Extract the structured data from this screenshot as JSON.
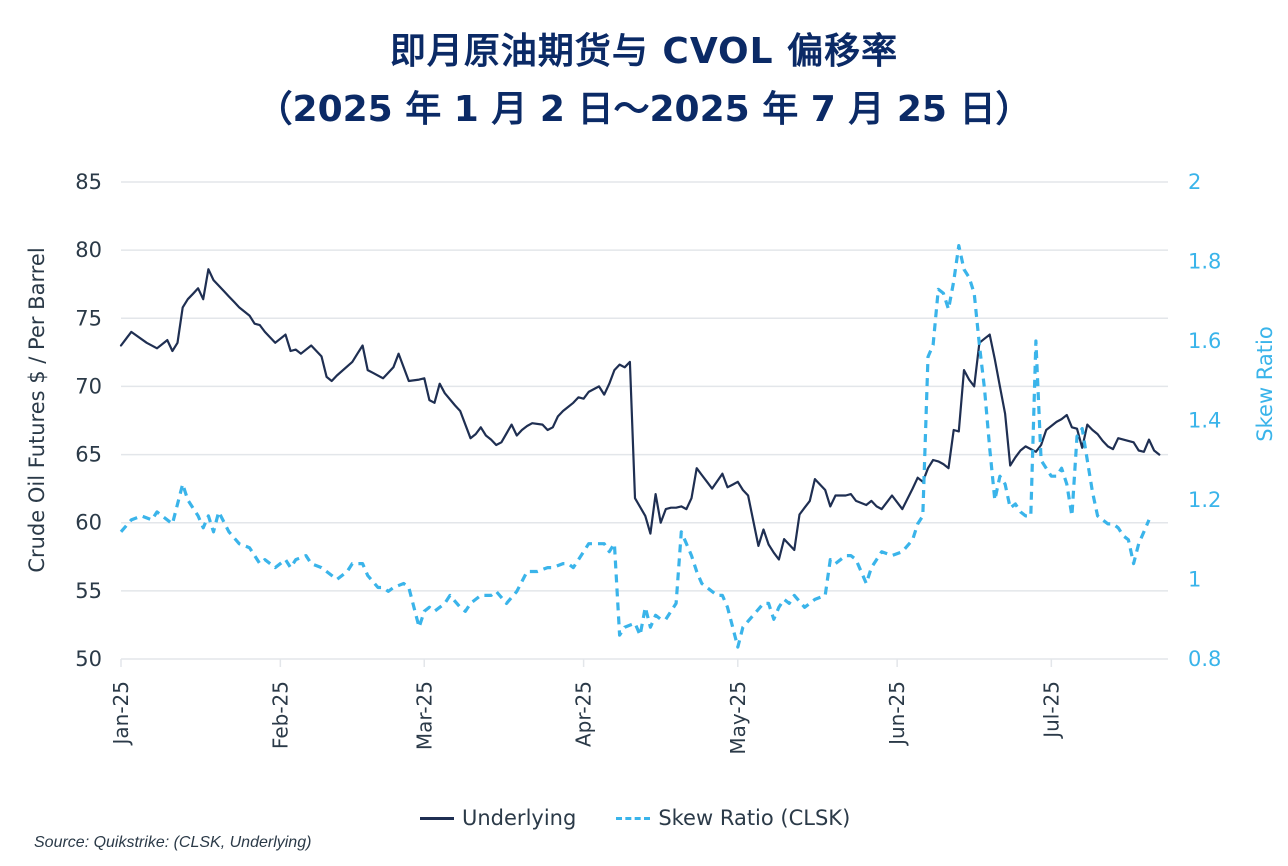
{
  "title_line1": "即月原油期货与 CVOL 偏移率",
  "title_line2": "（2025 年 1 月 2 日～2025 年 7 月 25 日）",
  "source": "Source: Quikstrike: (CLSK, Underlying)",
  "chart_data": {
    "type": "line",
    "title": "即月原油期货与 CVOL 偏移率（2025 年 1 月 2 日～2025 年 7 月 25 日）",
    "xlabel": "",
    "ylabel": "Crude Oil Futures  $ / Per Barrel",
    "y2label": "Skew Ratio",
    "ylim": [
      50,
      85
    ],
    "y2lim": [
      0.8,
      2.0
    ],
    "yticks": [
      "85",
      "80",
      "75",
      "70",
      "65",
      "60",
      "55",
      "50"
    ],
    "yticks_values": [
      85,
      80,
      75,
      70,
      65,
      60,
      55,
      50
    ],
    "y2ticks": [
      "2",
      "1.8",
      "1.6",
      "1.4",
      "1.2",
      "1",
      "0.8"
    ],
    "y2ticks_values": [
      2.0,
      1.8,
      1.6,
      1.4,
      1.2,
      1.0,
      0.8
    ],
    "xticks": [
      "Jan-25",
      "Feb-25",
      "Mar-25",
      "Apr-25",
      "May-25",
      "Jun-25",
      "Jul-25"
    ],
    "xticks_day": [
      0,
      31,
      59,
      90,
      120,
      151,
      181
    ],
    "xlim_day": [
      0,
      206
    ],
    "grid": true,
    "legend_position": "bottom-center",
    "colors": {
      "underlying": "#1f2f52",
      "skew": "#3ab4ea",
      "grid": "#e3e6ea"
    },
    "series": [
      {
        "name": "Underlying",
        "axis": "left",
        "style": "solid",
        "points_day": [
          0,
          2,
          5,
          7,
          9,
          10,
          11,
          12,
          13,
          14,
          15,
          16,
          17,
          18,
          20,
          21,
          22,
          23,
          25,
          26,
          27,
          28,
          29,
          30,
          32,
          33,
          34,
          35,
          37,
          39,
          40,
          41,
          42,
          45,
          46,
          47,
          48,
          49,
          51,
          52,
          53,
          54,
          56,
          58,
          59,
          60,
          61,
          62,
          63,
          65,
          66,
          68,
          69,
          70,
          71,
          72,
          73,
          74,
          76,
          77,
          78,
          79,
          80,
          82,
          83,
          84,
          85,
          86,
          87,
          88,
          89,
          90,
          91,
          93,
          94,
          95,
          96,
          97,
          98,
          99,
          100,
          102,
          103,
          104,
          105,
          106,
          107,
          108,
          109,
          110,
          111,
          112,
          113,
          114,
          115,
          117,
          118,
          119,
          120,
          121,
          122,
          124,
          125,
          126,
          127,
          128,
          129,
          131,
          132,
          133,
          134,
          135,
          137,
          138,
          139,
          141,
          142,
          143,
          145,
          146,
          147,
          148,
          150,
          152,
          154,
          155,
          156,
          157,
          158,
          159,
          160,
          161,
          162,
          163,
          164,
          165,
          166,
          167,
          168,
          169,
          170,
          171,
          172,
          173,
          174,
          175,
          176,
          177,
          178,
          179,
          180,
          181,
          182,
          183,
          184,
          185,
          186,
          187,
          188,
          189,
          190,
          191,
          192,
          193,
          194,
          195,
          196,
          197,
          198,
          199,
          200,
          201,
          202,
          203,
          204
        ],
        "values": [
          73.0,
          74.0,
          73.2,
          72.8,
          73.4,
          72.6,
          73.2,
          75.8,
          76.4,
          76.8,
          77.2,
          76.4,
          78.6,
          77.8,
          77.0,
          76.6,
          76.2,
          75.8,
          75.2,
          74.6,
          74.5,
          74.0,
          73.6,
          73.2,
          73.8,
          72.6,
          72.7,
          72.4,
          73.0,
          72.2,
          70.7,
          70.4,
          70.8,
          71.8,
          72.4,
          73.0,
          71.2,
          71.0,
          70.6,
          71.0,
          71.4,
          72.4,
          70.4,
          70.5,
          70.6,
          69.0,
          68.8,
          70.2,
          69.5,
          68.6,
          68.2,
          66.2,
          66.5,
          67.0,
          66.4,
          66.1,
          65.7,
          65.9,
          67.2,
          66.4,
          66.8,
          67.1,
          67.3,
          67.2,
          66.8,
          67.0,
          67.8,
          68.2,
          68.5,
          68.8,
          69.2,
          69.1,
          69.6,
          70.0,
          69.4,
          70.2,
          71.2,
          71.6,
          71.4,
          71.8,
          61.8,
          60.5,
          59.2,
          62.1,
          60.0,
          61.0,
          61.1,
          61.1,
          61.2,
          61.0,
          61.8,
          64.0,
          63.5,
          63.0,
          62.5,
          63.6,
          62.6,
          62.8,
          63.0,
          62.4,
          62.0,
          58.3,
          59.5,
          58.4,
          57.8,
          57.3,
          58.8,
          58.0,
          60.6,
          61.1,
          61.6,
          63.2,
          62.4,
          61.2,
          62.0,
          62.0,
          62.1,
          61.6,
          61.3,
          61.6,
          61.2,
          61.0,
          62.0,
          61.0,
          62.5,
          63.3,
          63.0,
          64.0,
          64.6,
          64.5,
          64.3,
          64.0,
          66.8,
          66.7,
          71.2,
          70.5,
          70.0,
          73.2,
          73.5,
          73.8,
          72.0,
          70.0,
          68.0,
          64.2,
          64.8,
          65.3,
          65.6,
          65.4,
          65.2,
          65.7,
          66.8,
          67.1,
          67.4,
          67.6,
          67.9,
          67.0,
          66.9,
          65.5,
          67.2,
          66.8,
          66.5,
          66.0,
          65.6,
          65.4,
          66.2,
          66.1,
          66.0,
          65.9,
          65.3,
          65.2,
          66.1,
          65.3,
          65.0
        ]
      },
      {
        "name": "Skew Ratio (CLSK)",
        "axis": "right",
        "style": "dashed",
        "points_day": [
          0,
          2,
          4,
          6,
          7,
          8,
          10,
          12,
          13,
          15,
          16,
          17,
          18,
          19,
          21,
          23,
          25,
          27,
          28,
          30,
          32,
          33,
          34,
          36,
          37,
          39,
          42,
          44,
          45,
          47,
          48,
          50,
          51,
          52,
          53,
          55,
          56,
          58,
          59,
          60,
          61,
          63,
          64,
          66,
          67,
          68,
          70,
          72,
          73,
          75,
          77,
          79,
          81,
          83,
          84,
          86,
          87,
          88,
          89,
          90,
          91,
          93,
          94,
          95,
          96,
          97,
          98,
          100,
          101,
          102,
          103,
          104,
          105,
          106,
          108,
          109,
          111,
          112,
          113,
          116,
          117,
          118,
          119,
          120,
          121,
          123,
          125,
          126,
          127,
          128,
          129,
          130,
          131,
          133,
          134,
          135,
          137,
          138,
          139,
          141,
          142,
          143,
          145,
          146,
          147,
          148,
          150,
          152,
          154,
          155,
          156,
          157,
          158,
          159,
          160,
          161,
          162,
          163,
          164,
          165,
          166,
          167,
          168,
          169,
          170,
          171,
          172,
          173,
          174,
          175,
          176,
          177,
          178,
          179,
          180,
          181,
          182,
          183,
          184,
          185,
          186,
          187,
          188,
          189,
          190,
          191,
          192,
          193,
          194,
          195,
          196,
          197,
          198,
          199,
          200,
          201,
          202,
          203,
          204
        ],
        "values": [
          1.12,
          1.15,
          1.16,
          1.15,
          1.17,
          1.16,
          1.14,
          1.24,
          1.2,
          1.16,
          1.13,
          1.16,
          1.12,
          1.17,
          1.12,
          1.09,
          1.08,
          1.04,
          1.05,
          1.03,
          1.05,
          1.03,
          1.05,
          1.06,
          1.04,
          1.03,
          1.0,
          1.02,
          1.04,
          1.04,
          1.01,
          0.98,
          0.98,
          0.97,
          0.98,
          0.99,
          0.98,
          0.88,
          0.92,
          0.93,
          0.92,
          0.94,
          0.96,
          0.93,
          0.92,
          0.94,
          0.96,
          0.96,
          0.97,
          0.94,
          0.97,
          1.02,
          1.02,
          1.03,
          1.03,
          1.04,
          1.04,
          1.03,
          1.05,
          1.07,
          1.09,
          1.09,
          1.09,
          1.07,
          1.09,
          0.86,
          0.88,
          0.89,
          0.86,
          0.93,
          0.88,
          0.91,
          0.9,
          0.9,
          0.94,
          1.12,
          1.06,
          1.02,
          0.99,
          0.96,
          0.96,
          0.93,
          0.88,
          0.83,
          0.88,
          0.91,
          0.94,
          0.94,
          0.9,
          0.93,
          0.95,
          0.94,
          0.96,
          0.93,
          0.94,
          0.95,
          0.96,
          1.05,
          1.04,
          1.06,
          1.06,
          1.05,
          0.99,
          1.03,
          1.05,
          1.07,
          1.06,
          1.07,
          1.1,
          1.14,
          1.16,
          1.56,
          1.59,
          1.73,
          1.72,
          1.68,
          1.75,
          1.84,
          1.78,
          1.76,
          1.72,
          1.59,
          1.48,
          1.33,
          1.2,
          1.26,
          1.24,
          1.18,
          1.19,
          1.17,
          1.16,
          1.16,
          1.6,
          1.3,
          1.28,
          1.26,
          1.26,
          1.28,
          1.24,
          1.16,
          1.36,
          1.38,
          1.3,
          1.22,
          1.16,
          1.15,
          1.14,
          1.14,
          1.13,
          1.11,
          1.1,
          1.04,
          1.09,
          1.12,
          1.15
        ]
      }
    ]
  }
}
